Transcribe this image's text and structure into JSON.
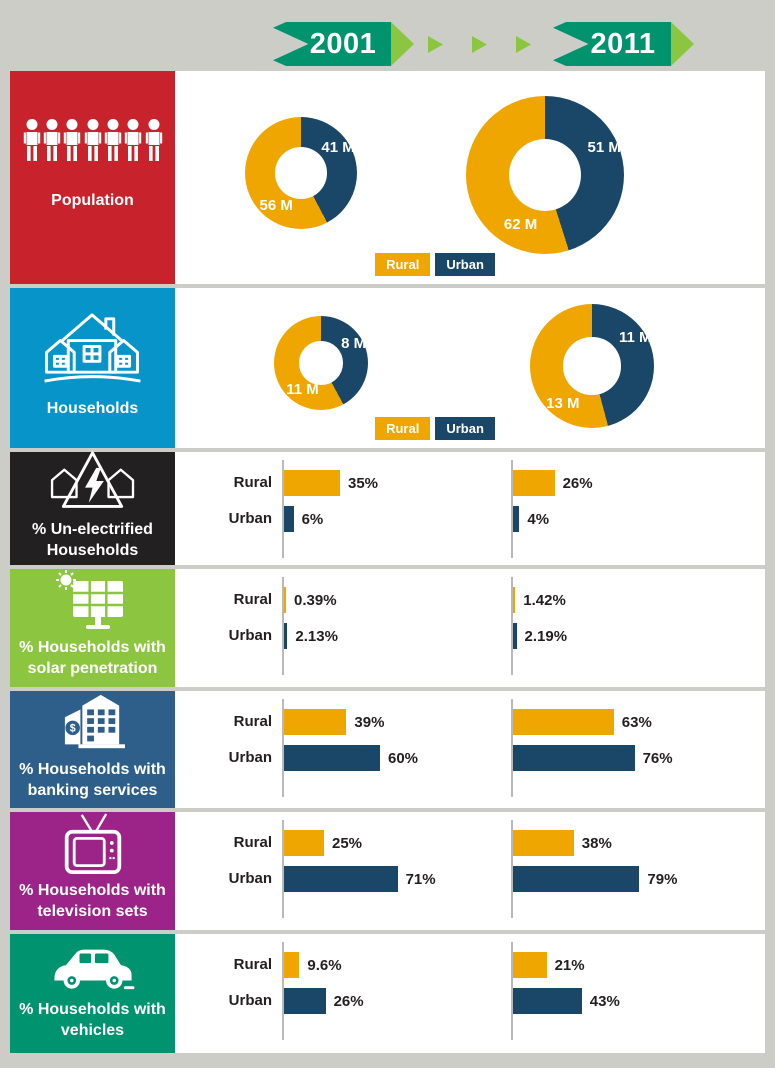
{
  "background_color": "#cdcdc7",
  "header": {
    "left_year": "2001",
    "right_year": "2011",
    "banner_color": "#00936e",
    "arrow_color": "#8cc640"
  },
  "legend": {
    "rural_label": "Rural",
    "urban_label": "Urban"
  },
  "colors": {
    "rural_gold": "#f0a600",
    "urban_navy": "#1a4668",
    "panel_white": "#ffffff",
    "axis_gray": "#b9b9b9",
    "text_dark": "#231f20"
  },
  "sidebar": {
    "population": {
      "label": "Population",
      "color": "#c8232c",
      "icon": "people-row-icon"
    },
    "households": {
      "label": "Households",
      "color": "#0794c8",
      "icon": "houses-icon"
    },
    "unelectrified": {
      "label_line1": "% Un-electrified",
      "label_line2": "Households",
      "color": "#232021",
      "icon": "unelectrified-houses-icon"
    },
    "solar": {
      "label_line1": "% Households with",
      "label_line2": "solar penetration",
      "color": "#8cc640",
      "icon": "solar-panel-icon"
    },
    "banking": {
      "label_line1": "% Households with",
      "label_line2": "banking services",
      "color": "#2d5f8a",
      "icon": "bank-building-icon"
    },
    "television": {
      "label_line1": "% Households with",
      "label_line2": "television sets",
      "color": "#9c2488",
      "icon": "television-icon"
    },
    "vehicles": {
      "label_line1": "% Households with",
      "label_line2": "vehicles",
      "color": "#00936f",
      "icon": "car-icon"
    }
  },
  "chart_data": [
    {
      "row": "Population",
      "type": "donut",
      "unit": "millions",
      "years": [
        "2001",
        "2011"
      ],
      "legend": [
        "Rural",
        "Urban"
      ],
      "y2001": {
        "urban": 41,
        "rural": 56,
        "urban_label": "41 M",
        "rural_label": "56 M"
      },
      "y2011": {
        "urban": 51,
        "rural": 62,
        "urban_label": "51 M",
        "rural_label": "62 M"
      }
    },
    {
      "row": "Households",
      "type": "donut",
      "unit": "millions",
      "years": [
        "2001",
        "2011"
      ],
      "legend": [
        "Rural",
        "Urban"
      ],
      "y2001": {
        "urban": 8,
        "rural": 11,
        "urban_label": "8 M",
        "rural_label": "11 M"
      },
      "y2011": {
        "urban": 11,
        "rural": 13,
        "urban_label": "11 M",
        "rural_label": "13 M"
      }
    },
    {
      "row": "% Un-electrified Households",
      "type": "bar",
      "categories": [
        "Rural",
        "Urban"
      ],
      "years": [
        "2001",
        "2011"
      ],
      "y2001": {
        "rural": 35,
        "urban": 6,
        "rural_label": "35%",
        "urban_label": "6%"
      },
      "y2011": {
        "rural": 26,
        "urban": 4,
        "rural_label": "26%",
        "urban_label": "4%"
      }
    },
    {
      "row": "% Households with solar penetration",
      "type": "bar",
      "categories": [
        "Rural",
        "Urban"
      ],
      "years": [
        "2001",
        "2011"
      ],
      "y2001": {
        "rural": 0.39,
        "urban": 2.13,
        "rural_label": "0.39%",
        "urban_label": "2.13%"
      },
      "y2011": {
        "rural": 1.42,
        "urban": 2.19,
        "rural_label": "1.42%",
        "urban_label": "2.19%"
      }
    },
    {
      "row": "% Households with banking services",
      "type": "bar",
      "categories": [
        "Rural",
        "Urban"
      ],
      "years": [
        "2001",
        "2011"
      ],
      "y2001": {
        "rural": 39,
        "urban": 60,
        "rural_label": "39%",
        "urban_label": "60%"
      },
      "y2011": {
        "rural": 63,
        "urban": 76,
        "rural_label": "63%",
        "urban_label": "76%"
      }
    },
    {
      "row": "% Households with television sets",
      "type": "bar",
      "categories": [
        "Rural",
        "Urban"
      ],
      "years": [
        "2001",
        "2011"
      ],
      "y2001": {
        "rural": 25,
        "urban": 71,
        "rural_label": "25%",
        "urban_label": "71%"
      },
      "y2011": {
        "rural": 38,
        "urban": 79,
        "rural_label": "38%",
        "urban_label": "79%"
      }
    },
    {
      "row": "% Households with vehicles",
      "type": "bar",
      "categories": [
        "Rural",
        "Urban"
      ],
      "years": [
        "2001",
        "2011"
      ],
      "y2001": {
        "rural": 9.6,
        "urban": 26,
        "rural_label": "9.6%",
        "urban_label": "26%"
      },
      "y2011": {
        "rural": 21,
        "urban": 43,
        "rural_label": "21%",
        "urban_label": "43%"
      }
    }
  ]
}
